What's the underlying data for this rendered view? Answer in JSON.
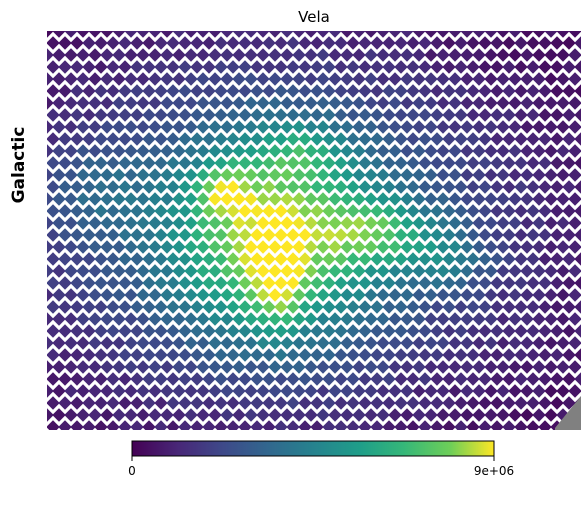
{
  "chart_data": {
    "type": "heatmap",
    "title": "Vela",
    "side_label": "Galactic",
    "colormap": "viridis",
    "colorbar": {
      "min": 0,
      "max": 9000000,
      "tick_labels": [
        "0",
        "9e+06"
      ],
      "orientation": "horizontal",
      "location": "bottom"
    },
    "masked_color": "#808080",
    "intensity_features": [
      {
        "x": 0.43,
        "y": 0.5,
        "sx": 0.3,
        "sy": 0.28,
        "amp": 0.45
      },
      {
        "x": 0.42,
        "y": 0.52,
        "sx": 0.12,
        "sy": 0.17,
        "amp": 0.5
      },
      {
        "x": 0.43,
        "y": 0.62,
        "sx": 0.03,
        "sy": 0.09,
        "amp": 0.3
      },
      {
        "x": 0.33,
        "y": 0.4,
        "sx": 0.035,
        "sy": 0.045,
        "amp": 0.3
      },
      {
        "x": 0.62,
        "y": 0.5,
        "sx": 0.07,
        "sy": 0.06,
        "amp": 0.35
      },
      {
        "x": 0.75,
        "y": 0.57,
        "sx": 0.06,
        "sy": 0.05,
        "amp": 0.22
      },
      {
        "x": 0.48,
        "y": 0.3,
        "sx": 0.06,
        "sy": 0.05,
        "amp": 0.2
      },
      {
        "x": 0.09,
        "y": 0.4,
        "sx": 0.06,
        "sy": 0.08,
        "amp": 0.15
      }
    ]
  }
}
